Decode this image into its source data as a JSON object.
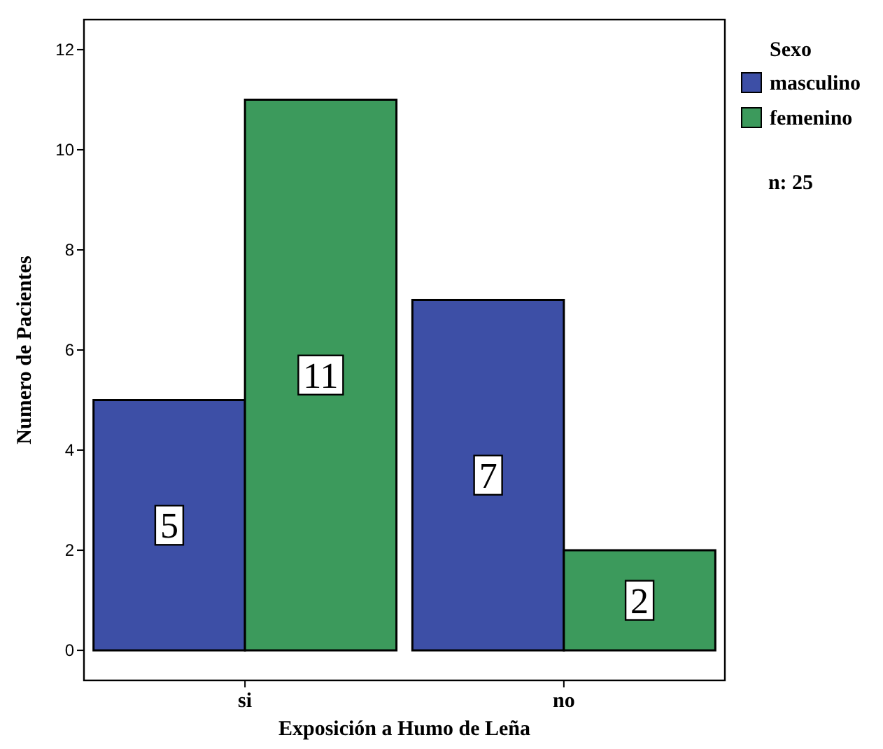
{
  "chart_data": {
    "type": "bar",
    "xlabel": "Exposición a Humo de Leña",
    "ylabel": "Numero de Pacientes",
    "legend_title": "Sexo",
    "categories": [
      "si",
      "no"
    ],
    "series": [
      {
        "name": "masculino",
        "color": "#3d4fa6",
        "values": [
          5,
          7
        ]
      },
      {
        "name": "femenino",
        "color": "#3c9a5c",
        "values": [
          11,
          2
        ]
      }
    ],
    "ylim": [
      -0.6,
      12.6
    ],
    "yticks": [
      0,
      2,
      4,
      6,
      8,
      10,
      12
    ],
    "grid": false,
    "legend": "right",
    "data_labels": true,
    "annotations": [
      "n: 25"
    ]
  }
}
